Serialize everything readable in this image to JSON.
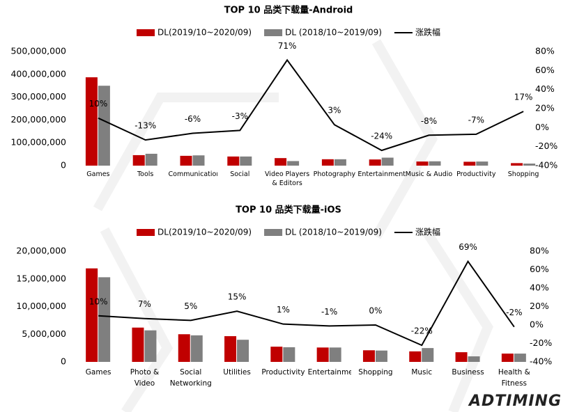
{
  "chart_data": [
    {
      "type": "combo",
      "title": "TOP 10 品类下载量-Android",
      "categories": [
        "Games",
        "Tools",
        "Communication",
        "Social",
        "Video Players & Editors",
        "Photography",
        "Entertainment",
        "Music & Audio",
        "Productivity",
        "Shopping"
      ],
      "series": [
        {
          "name": "DL(2019/10~2020/09)",
          "type": "bar",
          "color": "#c00000",
          "values": [
            387000000,
            46000000,
            43000000,
            40000000,
            33000000,
            28000000,
            27000000,
            18000000,
            17000000,
            11000000
          ]
        },
        {
          "name": "DL (2018/10~2019/09)",
          "type": "bar",
          "color": "#7f7f7f",
          "values": [
            350000000,
            52000000,
            45000000,
            40000000,
            20000000,
            28000000,
            35000000,
            19000000,
            18000000,
            9000000
          ]
        },
        {
          "name": "涨跌幅",
          "type": "line",
          "axis": "y2",
          "color": "#000000",
          "values": [
            10,
            -13,
            -6,
            -3,
            71,
            3,
            -24,
            -8,
            -7,
            17
          ],
          "value_labels": [
            "10%",
            "-13%",
            "-6%",
            "-3%",
            "71%",
            "3%",
            "-24%",
            "-8%",
            "-7%",
            "17%"
          ]
        }
      ],
      "ylim": [
        0,
        500000000
      ],
      "yticks": [
        0,
        {
          "value": 100000000,
          "label": "100,000,000"
        },
        {
          "value": 200000000,
          "label": "200,000,000"
        },
        {
          "value": 300000000,
          "label": "300,000,000"
        },
        {
          "value": 400000000,
          "label": "400,000,000"
        },
        {
          "value": 500000000,
          "label": "500,000,000"
        }
      ],
      "y2lim": [
        -40,
        80
      ],
      "y2ticks": [
        {
          "value": -40,
          "label": "-40%"
        },
        {
          "value": -20,
          "label": "-20%"
        },
        {
          "value": 0,
          "label": "0%"
        },
        {
          "value": 20,
          "label": "20%"
        },
        {
          "value": 40,
          "label": "40%"
        },
        {
          "value": 60,
          "label": "60%"
        },
        {
          "value": 80,
          "label": "80%"
        }
      ],
      "grid": false,
      "legend": "top"
    },
    {
      "type": "combo",
      "title": "TOP 10 品类下载量-iOS",
      "categories": [
        "Games",
        "Photo & Video",
        "Social Networking",
        "Utilities",
        "Productivity",
        "Entertainment",
        "Shopping",
        "Music",
        "Business",
        "Health & Fitness"
      ],
      "series": [
        {
          "name": "DL(2019/10~2020/09)",
          "type": "bar",
          "color": "#c00000",
          "values": [
            16900000,
            6200000,
            5000000,
            4650000,
            2750000,
            2600000,
            2100000,
            1900000,
            1750000,
            1500000
          ]
        },
        {
          "name": "DL (2018/10~2019/09)",
          "type": "bar",
          "color": "#7f7f7f",
          "values": [
            15300000,
            5700000,
            4800000,
            4000000,
            2650000,
            2600000,
            2050000,
            2500000,
            1000000,
            1500000
          ]
        },
        {
          "name": "涨跌幅",
          "type": "line",
          "axis": "y2",
          "color": "#000000",
          "values": [
            10,
            7,
            5,
            15,
            1,
            -1,
            0,
            -22,
            69,
            -2
          ],
          "value_labels": [
            "10%",
            "7%",
            "5%",
            "15%",
            "1%",
            "-1%",
            "0%",
            "-22%",
            "69%",
            "-2%"
          ]
        }
      ],
      "ylim": [
        0,
        20000000
      ],
      "yticks": [
        0,
        {
          "value": 5000000,
          "label": "5,000,000"
        },
        {
          "value": 10000000,
          "label": "10,000,000"
        },
        {
          "value": 15000000,
          "label": "15,000,000"
        },
        {
          "value": 20000000,
          "label": "20,000,000"
        }
      ],
      "y2lim": [
        -40,
        80
      ],
      "y2ticks": [
        {
          "value": -40,
          "label": "-40%"
        },
        {
          "value": -20,
          "label": "-20%"
        },
        {
          "value": 0,
          "label": "0%"
        },
        {
          "value": 20,
          "label": "20%"
        },
        {
          "value": 40,
          "label": "40%"
        },
        {
          "value": 60,
          "label": "60%"
        },
        {
          "value": 80,
          "label": "80%"
        }
      ],
      "grid": false,
      "legend": "top"
    }
  ],
  "logo": "ADTIMING"
}
